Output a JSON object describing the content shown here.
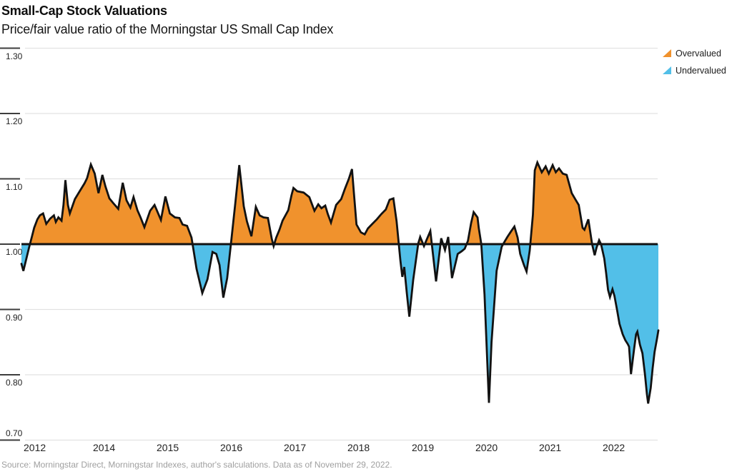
{
  "header": {
    "title": "Small-Cap Stock Valuations",
    "subtitle": "Price/fair value ratio of the Morningstar US Small Cap Index"
  },
  "legend": [
    {
      "label": "Overvalued",
      "color": "#F0922D"
    },
    {
      "label": "Undervalued",
      "color": "#52BFE8"
    }
  ],
  "source": "Source: Morningstar Direct, Morningstar Indexes, author's salculations. Data as of November 29, 2022.",
  "chart_data": {
    "type": "area",
    "title": "Small-Cap Stock Valuations",
    "subtitle": "Price/fair value ratio of the Morningstar US Small Cap Index",
    "ylabel": "Price/fair value ratio",
    "baseline": 1.0,
    "ylim": [
      0.7,
      1.3
    ],
    "xlim": [
      2012.9,
      2022.9
    ],
    "grid": true,
    "legend_position": "top-right",
    "y_ticks": [
      {
        "label": "1.30",
        "value": 1.3
      },
      {
        "label": "1.20",
        "value": 1.2
      },
      {
        "label": "1.10",
        "value": 1.1
      },
      {
        "label": "1.00",
        "value": 1.0
      },
      {
        "label": "0.90",
        "value": 0.9
      },
      {
        "label": "0.80",
        "value": 0.8
      },
      {
        "label": "0.70",
        "value": 0.7
      }
    ],
    "x_ticks": [
      {
        "label": "2012",
        "t": 2012.91
      },
      {
        "label": "2014",
        "t": 2014.0
      },
      {
        "label": "2015",
        "t": 2015.0
      },
      {
        "label": "2016",
        "t": 2016.0
      },
      {
        "label": "2017",
        "t": 2017.0
      },
      {
        "label": "2018",
        "t": 2018.0
      },
      {
        "label": "2019",
        "t": 2019.0
      },
      {
        "label": "2020",
        "t": 2020.0
      },
      {
        "label": "2021",
        "t": 2021.0
      },
      {
        "label": "2022",
        "t": 2022.0
      }
    ],
    "colors": {
      "overvalued": "#F0922D",
      "undervalued": "#52BFE8",
      "line": "#121212",
      "grid": "#E2E2E2",
      "tick": "#3d3d3d"
    },
    "series": [
      {
        "name": "Price/fair value ratio",
        "points": [
          [
            2012.9,
            0.97
          ],
          [
            2012.93,
            0.959
          ],
          [
            2013.02,
            0.995
          ],
          [
            2013.06,
            1.01
          ],
          [
            2013.1,
            1.025
          ],
          [
            2013.15,
            1.038
          ],
          [
            2013.19,
            1.044
          ],
          [
            2013.24,
            1.047
          ],
          [
            2013.29,
            1.031
          ],
          [
            2013.35,
            1.039
          ],
          [
            2013.41,
            1.044
          ],
          [
            2013.44,
            1.034
          ],
          [
            2013.48,
            1.041
          ],
          [
            2013.53,
            1.036
          ],
          [
            2013.56,
            1.06
          ],
          [
            2013.59,
            1.098
          ],
          [
            2013.63,
            1.06
          ],
          [
            2013.66,
            1.047
          ],
          [
            2013.74,
            1.069
          ],
          [
            2013.82,
            1.082
          ],
          [
            2013.89,
            1.093
          ],
          [
            2013.93,
            1.101
          ],
          [
            2013.99,
            1.122
          ],
          [
            2014.05,
            1.108
          ],
          [
            2014.09,
            1.088
          ],
          [
            2014.11,
            1.078
          ],
          [
            2014.17,
            1.106
          ],
          [
            2014.22,
            1.088
          ],
          [
            2014.28,
            1.07
          ],
          [
            2014.34,
            1.063
          ],
          [
            2014.42,
            1.054
          ],
          [
            2014.49,
            1.094
          ],
          [
            2014.55,
            1.067
          ],
          [
            2014.61,
            1.056
          ],
          [
            2014.66,
            1.072
          ],
          [
            2014.72,
            1.052
          ],
          [
            2014.77,
            1.041
          ],
          [
            2014.83,
            1.026
          ],
          [
            2014.92,
            1.051
          ],
          [
            2014.99,
            1.06
          ],
          [
            2015.09,
            1.037
          ],
          [
            2015.16,
            1.073
          ],
          [
            2015.23,
            1.047
          ],
          [
            2015.31,
            1.041
          ],
          [
            2015.38,
            1.04
          ],
          [
            2015.43,
            1.03
          ],
          [
            2015.5,
            1.028
          ],
          [
            2015.57,
            1.01
          ],
          [
            2015.65,
            0.962
          ],
          [
            2015.74,
            0.925
          ],
          [
            2015.82,
            0.946
          ],
          [
            2015.9,
            0.988
          ],
          [
            2015.96,
            0.985
          ],
          [
            2016.01,
            0.968
          ],
          [
            2016.07,
            0.918
          ],
          [
            2016.13,
            0.948
          ],
          [
            2016.2,
            1.01
          ],
          [
            2016.26,
            1.065
          ],
          [
            2016.32,
            1.121
          ],
          [
            2016.39,
            1.058
          ],
          [
            2016.44,
            1.035
          ],
          [
            2016.51,
            1.012
          ],
          [
            2016.58,
            1.057
          ],
          [
            2016.64,
            1.044
          ],
          [
            2016.7,
            1.041
          ],
          [
            2016.77,
            1.04
          ],
          [
            2016.83,
            1.008
          ],
          [
            2016.86,
            0.997
          ],
          [
            2016.9,
            1.01
          ],
          [
            2016.95,
            1.022
          ],
          [
            2017.0,
            1.036
          ],
          [
            2017.09,
            1.052
          ],
          [
            2017.14,
            1.075
          ],
          [
            2017.17,
            1.086
          ],
          [
            2017.23,
            1.081
          ],
          [
            2017.33,
            1.079
          ],
          [
            2017.42,
            1.072
          ],
          [
            2017.5,
            1.051
          ],
          [
            2017.56,
            1.061
          ],
          [
            2017.61,
            1.055
          ],
          [
            2017.67,
            1.059
          ],
          [
            2017.71,
            1.046
          ],
          [
            2017.76,
            1.033
          ],
          [
            2017.84,
            1.06
          ],
          [
            2017.92,
            1.069
          ],
          [
            2017.98,
            1.085
          ],
          [
            2018.04,
            1.1
          ],
          [
            2018.09,
            1.115
          ],
          [
            2018.12,
            1.078
          ],
          [
            2018.16,
            1.03
          ],
          [
            2018.23,
            1.018
          ],
          [
            2018.29,
            1.015
          ],
          [
            2018.34,
            1.024
          ],
          [
            2018.4,
            1.03
          ],
          [
            2018.48,
            1.038
          ],
          [
            2018.55,
            1.046
          ],
          [
            2018.62,
            1.053
          ],
          [
            2018.68,
            1.068
          ],
          [
            2018.74,
            1.07
          ],
          [
            2018.79,
            1.035
          ],
          [
            2018.85,
            0.975
          ],
          [
            2018.88,
            0.95
          ],
          [
            2018.91,
            0.965
          ],
          [
            2018.95,
            0.925
          ],
          [
            2018.99,
            0.889
          ],
          [
            2019.05,
            0.945
          ],
          [
            2019.13,
            1.001
          ],
          [
            2019.16,
            1.011
          ],
          [
            2019.22,
            0.997
          ],
          [
            2019.32,
            1.02
          ],
          [
            2019.41,
            0.943
          ],
          [
            2019.49,
            1.009
          ],
          [
            2019.55,
            0.991
          ],
          [
            2019.6,
            1.011
          ],
          [
            2019.66,
            0.948
          ],
          [
            2019.75,
            0.985
          ],
          [
            2019.81,
            0.989
          ],
          [
            2019.86,
            0.993
          ],
          [
            2019.91,
            1.005
          ],
          [
            2019.96,
            1.032
          ],
          [
            2020.0,
            1.049
          ],
          [
            2020.06,
            1.041
          ],
          [
            2020.08,
            1.025
          ],
          [
            2020.12,
            1.0
          ],
          [
            2020.17,
            0.923
          ],
          [
            2020.24,
            0.757
          ],
          [
            2020.28,
            0.85
          ],
          [
            2020.36,
            0.959
          ],
          [
            2020.44,
            0.996
          ],
          [
            2020.48,
            1.003
          ],
          [
            2020.53,
            1.011
          ],
          [
            2020.59,
            1.02
          ],
          [
            2020.64,
            1.027
          ],
          [
            2020.69,
            1.01
          ],
          [
            2020.73,
            0.985
          ],
          [
            2020.79,
            0.968
          ],
          [
            2020.83,
            0.958
          ],
          [
            2020.88,
            0.99
          ],
          [
            2020.93,
            1.045
          ],
          [
            2020.96,
            1.113
          ],
          [
            2021.0,
            1.125
          ],
          [
            2021.07,
            1.11
          ],
          [
            2021.13,
            1.119
          ],
          [
            2021.18,
            1.108
          ],
          [
            2021.24,
            1.121
          ],
          [
            2021.29,
            1.11
          ],
          [
            2021.34,
            1.116
          ],
          [
            2021.4,
            1.108
          ],
          [
            2021.46,
            1.106
          ],
          [
            2021.54,
            1.078
          ],
          [
            2021.6,
            1.068
          ],
          [
            2021.65,
            1.06
          ],
          [
            2021.71,
            1.025
          ],
          [
            2021.74,
            1.022
          ],
          [
            2021.8,
            1.038
          ],
          [
            2021.86,
            1.0
          ],
          [
            2021.9,
            0.983
          ],
          [
            2021.93,
            0.995
          ],
          [
            2021.97,
            1.006
          ],
          [
            2022.0,
            1.0
          ],
          [
            2022.05,
            0.978
          ],
          [
            2022.08,
            0.956
          ],
          [
            2022.11,
            0.93
          ],
          [
            2022.14,
            0.919
          ],
          [
            2022.18,
            0.931
          ],
          [
            2022.21,
            0.921
          ],
          [
            2022.25,
            0.9
          ],
          [
            2022.29,
            0.878
          ],
          [
            2022.34,
            0.862
          ],
          [
            2022.38,
            0.853
          ],
          [
            2022.42,
            0.847
          ],
          [
            2022.44,
            0.843
          ],
          [
            2022.47,
            0.801
          ],
          [
            2022.52,
            0.84
          ],
          [
            2022.55,
            0.862
          ],
          [
            2022.57,
            0.866
          ],
          [
            2022.61,
            0.846
          ],
          [
            2022.65,
            0.833
          ],
          [
            2022.69,
            0.8
          ],
          [
            2022.72,
            0.77
          ],
          [
            2022.74,
            0.756
          ],
          [
            2022.78,
            0.78
          ],
          [
            2022.81,
            0.81
          ],
          [
            2022.84,
            0.835
          ],
          [
            2022.88,
            0.856
          ],
          [
            2022.9,
            0.868
          ]
        ]
      }
    ]
  }
}
